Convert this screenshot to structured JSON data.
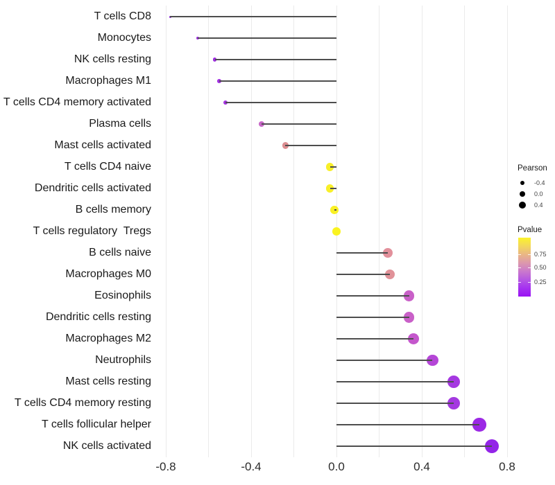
{
  "chart_data": {
    "type": "scatter",
    "variant": "lollipop",
    "title": "",
    "xlabel": "",
    "ylabel": "",
    "x_ticks": [
      -0.8,
      -0.4,
      0.0,
      0.4,
      0.8
    ],
    "x_tick_labels": [
      "-0.8",
      "-0.4",
      "0.0",
      "0.4",
      "0.8"
    ],
    "xlim": [
      -0.88,
      0.83
    ],
    "gridline_step": 0.2,
    "grid": "vertical-only",
    "legend_position": "right",
    "points": [
      {
        "label": "T cells CD8",
        "pearson": -0.78,
        "pvalue": 0.001,
        "color": "#8b22dd"
      },
      {
        "label": "Monocytes",
        "pearson": -0.65,
        "pvalue": 0.003,
        "color": "#9d2ae2"
      },
      {
        "label": "NK cells resting",
        "pearson": -0.57,
        "pvalue": 0.008,
        "color": "#9f2de1"
      },
      {
        "label": "Macrophages M1",
        "pearson": -0.55,
        "pvalue": 0.01,
        "color": "#a130e1"
      },
      {
        "label": "T cells CD4 memory activated",
        "pearson": -0.52,
        "pvalue": 0.015,
        "color": "#a434e0"
      },
      {
        "label": "Plasma cells",
        "pearson": -0.35,
        "pvalue": 0.1,
        "color": "#c767c7"
      },
      {
        "label": "Mast cells activated",
        "pearson": -0.24,
        "pvalue": 0.27,
        "color": "#dc8e91"
      },
      {
        "label": "T cells CD4 naive",
        "pearson": -0.03,
        "pvalue": 0.9,
        "color": "#f8ef29"
      },
      {
        "label": "Dendritic cells activated",
        "pearson": -0.03,
        "pvalue": 0.9,
        "color": "#f8ef29"
      },
      {
        "label": "B cells memory",
        "pearson": -0.01,
        "pvalue": 0.93,
        "color": "#f9f024"
      },
      {
        "label": "T cells regulatory  Tregs",
        "pearson": 0.0,
        "pvalue": 0.98,
        "color": "#faf320"
      },
      {
        "label": "B cells naive",
        "pearson": 0.24,
        "pvalue": 0.28,
        "color": "#e2909b"
      },
      {
        "label": "Macrophages M0",
        "pearson": 0.25,
        "pvalue": 0.26,
        "color": "#e19299"
      },
      {
        "label": "Eosinophils",
        "pearson": 0.34,
        "pvalue": 0.12,
        "color": "#c960c8"
      },
      {
        "label": "Dendritic cells resting",
        "pearson": 0.34,
        "pvalue": 0.12,
        "color": "#c960c8"
      },
      {
        "label": "Macrophages M2",
        "pearson": 0.36,
        "pvalue": 0.11,
        "color": "#c457cc"
      },
      {
        "label": "Neutrophils",
        "pearson": 0.45,
        "pvalue": 0.05,
        "color": "#b546d7"
      },
      {
        "label": "Mast cells resting",
        "pearson": 0.55,
        "pvalue": 0.012,
        "color": "#a538e1"
      },
      {
        "label": "T cells CD4 memory resting",
        "pearson": 0.55,
        "pvalue": 0.012,
        "color": "#a43ae0"
      },
      {
        "label": "T cells follicular helper",
        "pearson": 0.67,
        "pvalue": 0.004,
        "color": "#9c29e5"
      },
      {
        "label": "NK cells activated",
        "pearson": 0.73,
        "pvalue": 0.002,
        "color": "#9324e8"
      }
    ],
    "legend": {
      "size": {
        "title": "Pearson",
        "entries": [
          {
            "label": "-0.4",
            "value": -0.4
          },
          {
            "label": "0.0",
            "value": 0.0
          },
          {
            "label": "0.4",
            "value": 0.4
          }
        ]
      },
      "color": {
        "title": "Pvalue",
        "tick_labels": [
          "0.75",
          "0.50",
          "0.25"
        ],
        "tick_values": [
          0.75,
          0.5,
          0.25
        ],
        "gradient_top_to_bottom": [
          "#fcf32b",
          "#f2d75c",
          "#eab685",
          "#dc98ad",
          "#ca79cc",
          "#b557e2",
          "#a531f0",
          "#9a13f3"
        ]
      }
    },
    "style_colors": {
      "stem": "#4d4d4d",
      "gridline": "#eaeaea",
      "axis_text": "#2b2b2b",
      "background": "#ffffff"
    }
  }
}
